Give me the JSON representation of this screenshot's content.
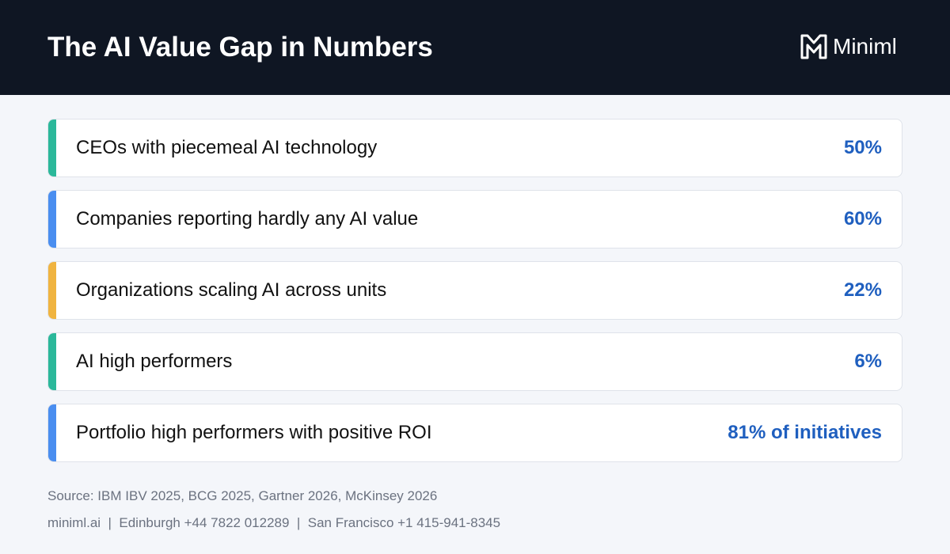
{
  "header": {
    "title": "The AI Value Gap in Numbers",
    "logo": "Miniml"
  },
  "rows": [
    {
      "label": "CEOs with piecemeal AI technology",
      "value": "50%",
      "accent": "#2bb89a"
    },
    {
      "label": "Companies reporting hardly any AI value",
      "value": "60%",
      "accent": "#4a8ef0"
    },
    {
      "label": "Organizations scaling AI across units",
      "value": "22%",
      "accent": "#f0b440"
    },
    {
      "label": "AI high performers",
      "value": "6%",
      "accent": "#2bb89a"
    },
    {
      "label": "Portfolio high performers with positive ROI",
      "value": "81% of initiatives",
      "accent": "#4a8ef0"
    }
  ],
  "footer": {
    "source": "Source: IBM IBV 2025, BCG 2025, Gartner 2026, McKinsey 2026",
    "contact": "miniml.ai  |  Edinburgh +44 7822 012289  |  San Francisco +1 415-941-8345"
  }
}
